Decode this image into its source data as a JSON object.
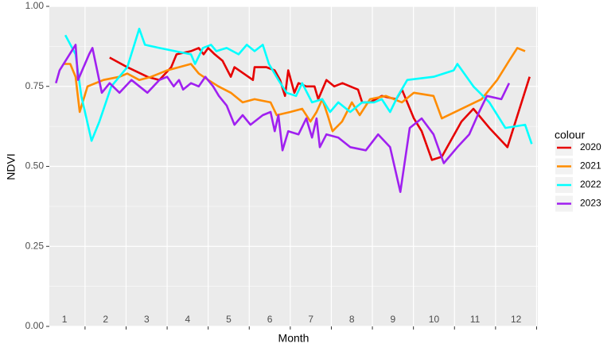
{
  "chart_data": {
    "type": "line",
    "xlabel": "Month",
    "ylabel": "NDVI",
    "legend_title": "colour",
    "legend_position": "right",
    "grid": true,
    "xlim": [
      0.63,
      12.53
    ],
    "ylim": [
      0,
      1
    ],
    "xticks": [
      1.5,
      2.5,
      3.5,
      4.5,
      5.5,
      6.5,
      7.5,
      8.5,
      9.5,
      10.5,
      11.5,
      12.5
    ],
    "month_labels": [
      1,
      2,
      3,
      4,
      5,
      6,
      7,
      8,
      9,
      10,
      11,
      12
    ],
    "yticks": [
      {
        "value": 0,
        "label": "0.00"
      },
      {
        "value": 0.25,
        "label": "0.25"
      },
      {
        "value": 0.5,
        "label": "0.50"
      },
      {
        "value": 0.75,
        "label": "0.75"
      },
      {
        "value": 1,
        "label": "1.00"
      }
    ],
    "series": [
      {
        "name": "2020",
        "color": "#e60000",
        "x": [
          2.1,
          2.53,
          3.02,
          3.31,
          3.6,
          3.73,
          4.08,
          4.27,
          4.39,
          4.5,
          4.66,
          4.85,
          5.05,
          5.14,
          5.59,
          5.63,
          5.92,
          6.12,
          6.25,
          6.37,
          6.45,
          6.6,
          6.7,
          6.89,
          7.09,
          7.18,
          7.38,
          7.57,
          7.77,
          7.96,
          8.15,
          8.25,
          8.44,
          8.73,
          9.08,
          9.22,
          9.51,
          9.7,
          9.95,
          10.19,
          10.67,
          10.96,
          11.35,
          11.79,
          12.33
        ],
        "values": [
          0.84,
          0.81,
          0.78,
          0.77,
          0.81,
          0.85,
          0.86,
          0.87,
          0.85,
          0.87,
          0.85,
          0.83,
          0.78,
          0.81,
          0.77,
          0.81,
          0.81,
          0.8,
          0.77,
          0.72,
          0.8,
          0.73,
          0.76,
          0.75,
          0.75,
          0.71,
          0.77,
          0.75,
          0.76,
          0.75,
          0.74,
          0.7,
          0.7,
          0.72,
          0.71,
          0.74,
          0.65,
          0.61,
          0.52,
          0.53,
          0.64,
          0.68,
          0.62,
          0.56,
          0.78
        ]
      },
      {
        "name": "2021",
        "color": "#ff8c00",
        "x": [
          0.98,
          1.14,
          1.27,
          1.37,
          1.56,
          1.95,
          2.34,
          2.53,
          2.82,
          3.11,
          3.31,
          3.5,
          3.79,
          4.08,
          4.27,
          4.5,
          4.75,
          5.05,
          5.34,
          5.63,
          6.02,
          6.17,
          6.5,
          6.79,
          6.99,
          7.14,
          7.28,
          7.41,
          7.53,
          7.76,
          8.0,
          8.19,
          8.44,
          8.83,
          9.22,
          9.51,
          9.99,
          10.19,
          11.16,
          11.54,
          11.83,
          12.03,
          12.22
        ],
        "values": [
          0.82,
          0.82,
          0.78,
          0.67,
          0.75,
          0.77,
          0.78,
          0.79,
          0.77,
          0.78,
          0.79,
          0.8,
          0.81,
          0.82,
          0.79,
          0.77,
          0.75,
          0.73,
          0.7,
          0.71,
          0.7,
          0.66,
          0.67,
          0.68,
          0.64,
          0.67,
          0.71,
          0.66,
          0.61,
          0.64,
          0.7,
          0.66,
          0.71,
          0.72,
          0.7,
          0.73,
          0.72,
          0.65,
          0.71,
          0.77,
          0.83,
          0.87,
          0.86
        ]
      },
      {
        "name": "2022",
        "color": "#00ffff",
        "x": [
          1.02,
          1.27,
          1.41,
          1.66,
          1.85,
          2.14,
          2.53,
          2.82,
          2.96,
          3.31,
          3.69,
          4.08,
          4.18,
          4.37,
          4.57,
          4.7,
          4.95,
          5.24,
          5.44,
          5.63,
          5.83,
          5.98,
          6.21,
          6.41,
          6.64,
          6.79,
          7.03,
          7.28,
          7.47,
          7.67,
          7.96,
          8.25,
          8.54,
          8.73,
          8.93,
          9.12,
          9.35,
          9.99,
          10.48,
          10.57,
          10.96,
          11.35,
          11.74,
          12.22,
          12.38
        ],
        "values": [
          0.91,
          0.85,
          0.72,
          0.58,
          0.64,
          0.75,
          0.81,
          0.93,
          0.88,
          0.87,
          0.86,
          0.85,
          0.82,
          0.87,
          0.88,
          0.86,
          0.87,
          0.85,
          0.88,
          0.86,
          0.88,
          0.82,
          0.77,
          0.73,
          0.72,
          0.76,
          0.7,
          0.71,
          0.67,
          0.7,
          0.67,
          0.7,
          0.7,
          0.71,
          0.67,
          0.72,
          0.77,
          0.78,
          0.8,
          0.82,
          0.75,
          0.7,
          0.62,
          0.63,
          0.57
        ]
      },
      {
        "name": "2023",
        "color": "#a020f0",
        "x": [
          0.79,
          0.88,
          1.27,
          1.33,
          1.6,
          1.68,
          1.91,
          2.1,
          2.34,
          2.63,
          3.02,
          3.31,
          3.5,
          3.66,
          3.79,
          3.89,
          4.08,
          4.27,
          4.43,
          4.62,
          4.76,
          4.95,
          5.14,
          5.34,
          5.53,
          5.83,
          6.02,
          6.12,
          6.21,
          6.31,
          6.45,
          6.7,
          6.89,
          7.03,
          7.14,
          7.22,
          7.38,
          7.67,
          7.96,
          8.34,
          8.64,
          8.93,
          9.18,
          9.41,
          9.7,
          9.99,
          10.24,
          10.57,
          10.86,
          11.1,
          11.29,
          11.64,
          11.83
        ],
        "values": [
          0.76,
          0.8,
          0.88,
          0.77,
          0.85,
          0.87,
          0.73,
          0.76,
          0.73,
          0.77,
          0.73,
          0.77,
          0.78,
          0.75,
          0.77,
          0.74,
          0.76,
          0.75,
          0.78,
          0.75,
          0.72,
          0.69,
          0.63,
          0.66,
          0.63,
          0.66,
          0.67,
          0.61,
          0.66,
          0.55,
          0.61,
          0.6,
          0.65,
          0.59,
          0.65,
          0.56,
          0.6,
          0.59,
          0.56,
          0.55,
          0.6,
          0.56,
          0.42,
          0.62,
          0.65,
          0.6,
          0.51,
          0.56,
          0.6,
          0.67,
          0.72,
          0.71,
          0.76
        ]
      }
    ]
  }
}
